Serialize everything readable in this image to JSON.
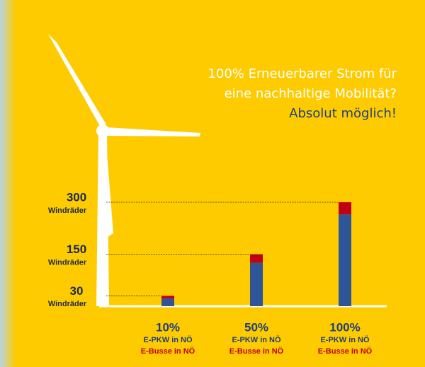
{
  "chart_data": {
    "type": "bar",
    "stacked": true,
    "title": [
      "100% Erneuerbarer Strom für",
      "eine nachhaltige Mobilität?",
      "Absolut möglich!"
    ],
    "title_colors": [
      "#ffffff",
      "#ffffff",
      "#1f3f7a"
    ],
    "categories": [
      "10%",
      "50%",
      "100%"
    ],
    "series": [
      {
        "name": "E-PKW in NÖ",
        "color": "#2e5597",
        "values": [
          22,
          125,
          265
        ]
      },
      {
        "name": "E-Busse in NÖ",
        "color": "#c00015",
        "values": [
          8,
          25,
          35
        ]
      }
    ],
    "ylim": [
      0,
      300
    ],
    "yticks": [
      30,
      150,
      300
    ],
    "ytick_sublabels": [
      "Windräder",
      "Windräder",
      "Windräder"
    ],
    "grid": true
  }
}
